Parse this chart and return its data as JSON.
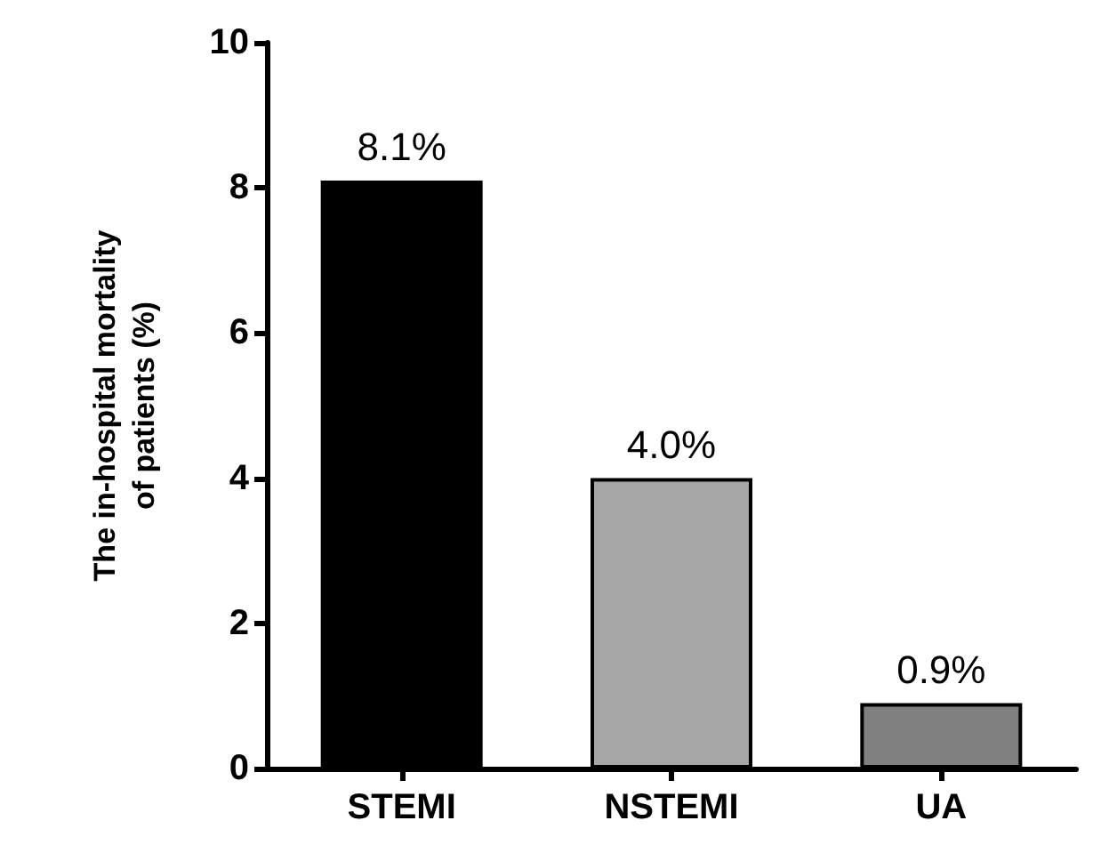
{
  "chart_data": {
    "type": "bar",
    "ylabel": "The in-hospital mortality\nof patients (%)",
    "categories": [
      "STEMI",
      "NSTEMI",
      "UA"
    ],
    "values": [
      8.1,
      4.0,
      0.9
    ],
    "colors": [
      "#000000",
      "#a6a6a6",
      "#808080"
    ],
    "value_labels": [
      "8.1%",
      "4.0%",
      "0.9%"
    ],
    "ylim": [
      0,
      10
    ],
    "yticks": [
      0,
      2,
      4,
      6,
      8,
      10
    ],
    "grid": false
  }
}
